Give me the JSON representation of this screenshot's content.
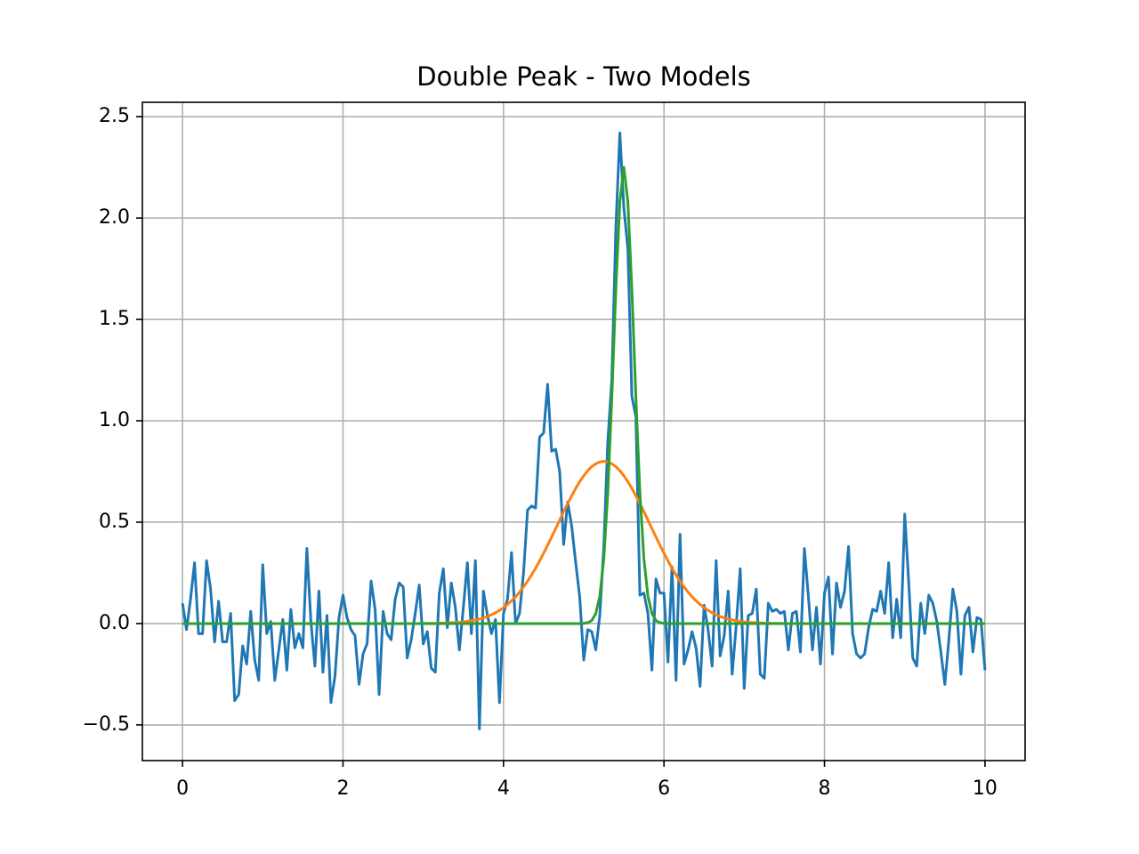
{
  "chart_data": {
    "type": "line",
    "title": "Double Peak - Two Models",
    "x": [
      0,
      0.05,
      0.1,
      0.15,
      0.2,
      0.25,
      0.3,
      0.35,
      0.4,
      0.45,
      0.5,
      0.55,
      0.6,
      0.65,
      0.7,
      0.75,
      0.8,
      0.85,
      0.9,
      0.95,
      1,
      1.05,
      1.1,
      1.15,
      1.2,
      1.25,
      1.3,
      1.35,
      1.4,
      1.45,
      1.5,
      1.55,
      1.6,
      1.65,
      1.7,
      1.75,
      1.8,
      1.85,
      1.9,
      1.95,
      2,
      2.05,
      2.1,
      2.15,
      2.2,
      2.25,
      2.3,
      2.35,
      2.4,
      2.45,
      2.5,
      2.55,
      2.6,
      2.65,
      2.7,
      2.75,
      2.8,
      2.85,
      2.9,
      2.95,
      3,
      3.05,
      3.1,
      3.15,
      3.2,
      3.25,
      3.3,
      3.35,
      3.4,
      3.45,
      3.5,
      3.55,
      3.6,
      3.65,
      3.7,
      3.75,
      3.8,
      3.85,
      3.9,
      3.95,
      4,
      4.05,
      4.1,
      4.15,
      4.2,
      4.25,
      4.3,
      4.35,
      4.4,
      4.45,
      4.5,
      4.55,
      4.6,
      4.65,
      4.7,
      4.75,
      4.8,
      4.85,
      4.9,
      4.95,
      5,
      5.05,
      5.1,
      5.15,
      5.2,
      5.25,
      5.3,
      5.35,
      5.4,
      5.45,
      5.5,
      5.55,
      5.6,
      5.65,
      5.7,
      5.75,
      5.8,
      5.85,
      5.9,
      5.95,
      6,
      6.05,
      6.1,
      6.15,
      6.2,
      6.25,
      6.3,
      6.35,
      6.4,
      6.45,
      6.5,
      6.55,
      6.6,
      6.65,
      6.7,
      6.75,
      6.8,
      6.85,
      6.9,
      6.95,
      7,
      7.05,
      7.1,
      7.15,
      7.2,
      7.25,
      7.3,
      7.35,
      7.4,
      7.45,
      7.5,
      7.55,
      7.6,
      7.65,
      7.7,
      7.75,
      7.8,
      7.85,
      7.9,
      7.95,
      8,
      8.05,
      8.1,
      8.15,
      8.2,
      8.25,
      8.3,
      8.35,
      8.4,
      8.45,
      8.5,
      8.55,
      8.6,
      8.65,
      8.7,
      8.75,
      8.8,
      8.85,
      8.9,
      8.95,
      9,
      9.05,
      9.1,
      9.15,
      9.2,
      9.25,
      9.3,
      9.35,
      9.4,
      9.45,
      9.5,
      9.55,
      9.6,
      9.65,
      9.7,
      9.75,
      9.8,
      9.85,
      9.9,
      9.95,
      10
    ],
    "series": [
      {
        "color": "#1f77b4",
        "values": [
          0.1,
          -0.03,
          0.12,
          0.3,
          -0.05,
          -0.05,
          0.31,
          0.17,
          -0.09,
          0.11,
          -0.09,
          -0.09,
          0.05,
          -0.38,
          -0.35,
          -0.11,
          -0.2,
          0.06,
          -0.18,
          -0.28,
          0.29,
          -0.05,
          0.01,
          -0.28,
          -0.13,
          0.02,
          -0.23,
          0.07,
          -0.12,
          -0.05,
          -0.12,
          0.37,
          0.01,
          -0.21,
          0.16,
          -0.24,
          0.04,
          -0.39,
          -0.26,
          0.03,
          0.14,
          0.03,
          -0.03,
          -0.06,
          -0.3,
          -0.15,
          -0.1,
          0.21,
          0.07,
          -0.35,
          0.06,
          -0.05,
          -0.08,
          0.12,
          0.2,
          0.18,
          -0.17,
          -0.08,
          0.05,
          0.19,
          -0.1,
          -0.04,
          -0.22,
          -0.24,
          0.15,
          0.27,
          -0.02,
          0.2,
          0.08,
          -0.13,
          0.08,
          0.3,
          -0.05,
          0.31,
          -0.52,
          0.16,
          0.04,
          -0.05,
          0.02,
          -0.39,
          0.05,
          0.12,
          0.35,
          0.0,
          0.05,
          0.25,
          0.56,
          0.58,
          0.57,
          0.92,
          0.94,
          1.18,
          0.85,
          0.86,
          0.75,
          0.39,
          0.6,
          0.48,
          0.3,
          0.13,
          -0.18,
          -0.03,
          -0.04,
          -0.13,
          0.04,
          0.38,
          0.9,
          1.2,
          1.95,
          2.42,
          2.05,
          1.85,
          1.12,
          1.02,
          0.14,
          0.15,
          0.05,
          -0.23,
          0.22,
          0.15,
          0.15,
          -0.19,
          0.28,
          -0.28,
          0.44,
          -0.2,
          -0.13,
          -0.04,
          -0.12,
          -0.31,
          0.09,
          -0.03,
          -0.21,
          0.31,
          -0.16,
          -0.06,
          0.16,
          -0.25,
          -0.01,
          0.27,
          -0.32,
          0.04,
          0.05,
          0.17,
          -0.25,
          -0.27,
          0.1,
          0.06,
          0.07,
          0.05,
          0.06,
          -0.13,
          0.05,
          0.06,
          -0.14,
          0.37,
          0.13,
          -0.13,
          0.08,
          -0.2,
          0.15,
          0.23,
          -0.15,
          0.2,
          0.08,
          0.16,
          0.38,
          -0.05,
          -0.15,
          -0.17,
          -0.15,
          -0.02,
          0.07,
          0.06,
          0.16,
          0.05,
          0.3,
          -0.07,
          0.12,
          -0.07,
          0.54,
          0.2,
          -0.17,
          -0.21,
          0.1,
          -0.05,
          0.14,
          0.1,
          0.01,
          -0.14,
          -0.3,
          -0.08,
          0.17,
          0.06,
          -0.25,
          0.04,
          0.08,
          -0.14,
          0.03,
          0.02,
          -0.23
        ]
      },
      {
        "color": "#ff7f0e",
        "values": [
          0,
          0,
          0,
          0,
          0,
          0,
          0,
          0,
          0,
          0,
          0,
          0,
          0,
          0,
          0,
          0,
          0,
          0,
          0,
          0,
          0,
          0,
          0,
          0,
          0,
          0,
          0,
          0,
          0,
          0,
          0,
          0,
          0,
          0,
          0,
          0,
          0,
          0,
          0,
          0,
          0,
          0,
          0,
          0,
          0,
          0,
          0,
          0,
          0,
          0,
          0,
          0,
          0,
          0,
          0,
          0,
          0,
          0,
          0,
          0,
          0,
          0.001,
          0.001,
          0.001,
          0.002,
          0.002,
          0.003,
          0.004,
          0.005,
          0.006,
          0.008,
          0.011,
          0.014,
          0.018,
          0.022,
          0.028,
          0.035,
          0.043,
          0.053,
          0.065,
          0.078,
          0.094,
          0.112,
          0.132,
          0.155,
          0.181,
          0.209,
          0.24,
          0.273,
          0.309,
          0.347,
          0.386,
          0.427,
          0.468,
          0.51,
          0.552,
          0.592,
          0.63,
          0.667,
          0.7,
          0.729,
          0.754,
          0.774,
          0.788,
          0.797,
          0.8,
          0.797,
          0.788,
          0.774,
          0.754,
          0.729,
          0.7,
          0.667,
          0.63,
          0.592,
          0.552,
          0.51,
          0.468,
          0.427,
          0.386,
          0.347,
          0.309,
          0.273,
          0.24,
          0.209,
          0.181,
          0.155,
          0.132,
          0.112,
          0.094,
          0.078,
          0.065,
          0.053,
          0.043,
          0.035,
          0.028,
          0.022,
          0.018,
          0.014,
          0.011,
          0.008,
          0.006,
          0.005,
          0.004,
          0.003,
          0.002,
          0.002,
          0.001,
          0.001,
          0.001,
          0,
          0,
          0,
          0,
          0,
          0,
          0,
          0,
          0,
          0,
          0,
          0,
          0,
          0,
          0,
          0,
          0,
          0,
          0,
          0,
          0,
          0,
          0,
          0,
          0,
          0,
          0,
          0,
          0,
          0,
          0,
          0,
          0,
          0,
          0,
          0,
          0,
          0,
          0,
          0,
          0,
          0,
          0,
          0,
          0,
          0,
          0,
          0,
          0,
          0,
          0
        ]
      },
      {
        "color": "#2ca02c",
        "values": [
          0,
          0,
          0,
          0,
          0,
          0,
          0,
          0,
          0,
          0,
          0,
          0,
          0,
          0,
          0,
          0,
          0,
          0,
          0,
          0,
          0,
          0,
          0,
          0,
          0,
          0,
          0,
          0,
          0,
          0,
          0,
          0,
          0,
          0,
          0,
          0,
          0,
          0,
          0,
          0,
          0,
          0,
          0,
          0,
          0,
          0,
          0,
          0,
          0,
          0,
          0,
          0,
          0,
          0,
          0,
          0,
          0,
          0,
          0,
          0,
          0,
          0,
          0,
          0,
          0,
          0,
          0,
          0,
          0,
          0,
          0,
          0,
          0,
          0,
          0,
          0,
          0,
          0,
          0,
          0,
          0,
          0,
          0,
          0,
          0,
          0,
          0,
          0,
          0,
          0,
          0,
          0,
          0,
          0,
          0,
          0,
          0,
          0,
          0,
          0,
          0.001,
          0.004,
          0.015,
          0.049,
          0.135,
          0.319,
          0.645,
          1.114,
          1.646,
          2.081,
          2.25,
          2.081,
          1.646,
          1.114,
          0.645,
          0.319,
          0.135,
          0.049,
          0.015,
          0.004,
          0.001,
          0,
          0,
          0,
          0,
          0,
          0,
          0,
          0,
          0,
          0,
          0,
          0,
          0,
          0,
          0,
          0,
          0,
          0,
          0,
          0,
          0,
          0,
          0,
          0,
          0,
          0,
          0,
          0,
          0,
          0,
          0,
          0,
          0,
          0,
          0,
          0,
          0,
          0,
          0,
          0,
          0,
          0,
          0,
          0,
          0,
          0,
          0,
          0,
          0,
          0,
          0,
          0,
          0,
          0,
          0,
          0,
          0,
          0,
          0,
          0,
          0,
          0,
          0,
          0,
          0,
          0,
          0,
          0,
          0,
          0,
          0,
          0,
          0,
          0,
          0,
          0,
          0,
          0,
          0,
          0
        ]
      }
    ],
    "xlim": [
      -0.5,
      10.5
    ],
    "ylim": [
      -0.676,
      2.571
    ],
    "xticks": [
      0,
      2,
      4,
      6,
      8,
      10
    ],
    "yticks": [
      {
        "value": -0.5,
        "label": "−0.5"
      },
      {
        "value": 0,
        "label": "0.0"
      },
      {
        "value": 0.5,
        "label": "0.5"
      },
      {
        "value": 1,
        "label": "1.0"
      },
      {
        "value": 1.5,
        "label": "1.5"
      },
      {
        "value": 2,
        "label": "2.0"
      },
      {
        "value": 2.5,
        "label": "2.5"
      }
    ],
    "grid": true
  }
}
